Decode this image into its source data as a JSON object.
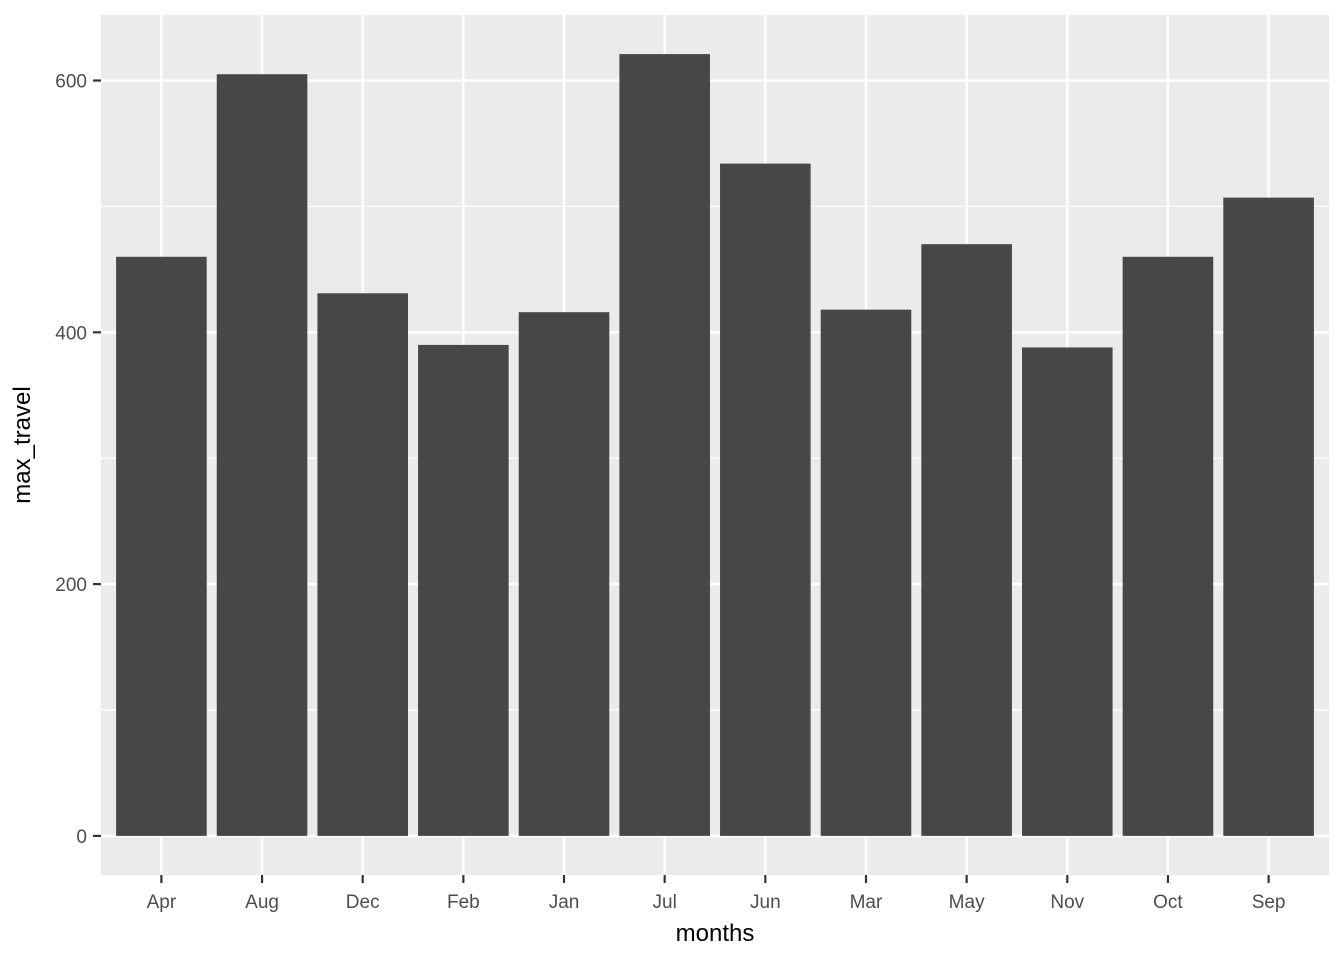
{
  "chart_data": {
    "type": "bar",
    "title": "",
    "categories": [
      "Apr",
      "Aug",
      "Dec",
      "Feb",
      "Jan",
      "Jul",
      "Jun",
      "Mar",
      "May",
      "Nov",
      "Oct",
      "Sep"
    ],
    "values": [
      460,
      605,
      431,
      390,
      416,
      621,
      534,
      418,
      470,
      388,
      460,
      507
    ],
    "xlabel": "months",
    "ylabel": "max_travel",
    "y_major_ticks": [
      0,
      200,
      400,
      600
    ],
    "y_minor_ticks": [
      100,
      300,
      500
    ],
    "ylim": [
      0,
      653
    ],
    "grid": "on",
    "legend": "none",
    "bar_relative_width": 0.9,
    "colors": {
      "bar_fill": "#474747",
      "panel_background": "#EBEBEB",
      "gridline": "#FFFFFF",
      "tick_label": "#4D4D4D",
      "axis_title": "#000000",
      "tick_mark": "#333333"
    }
  }
}
